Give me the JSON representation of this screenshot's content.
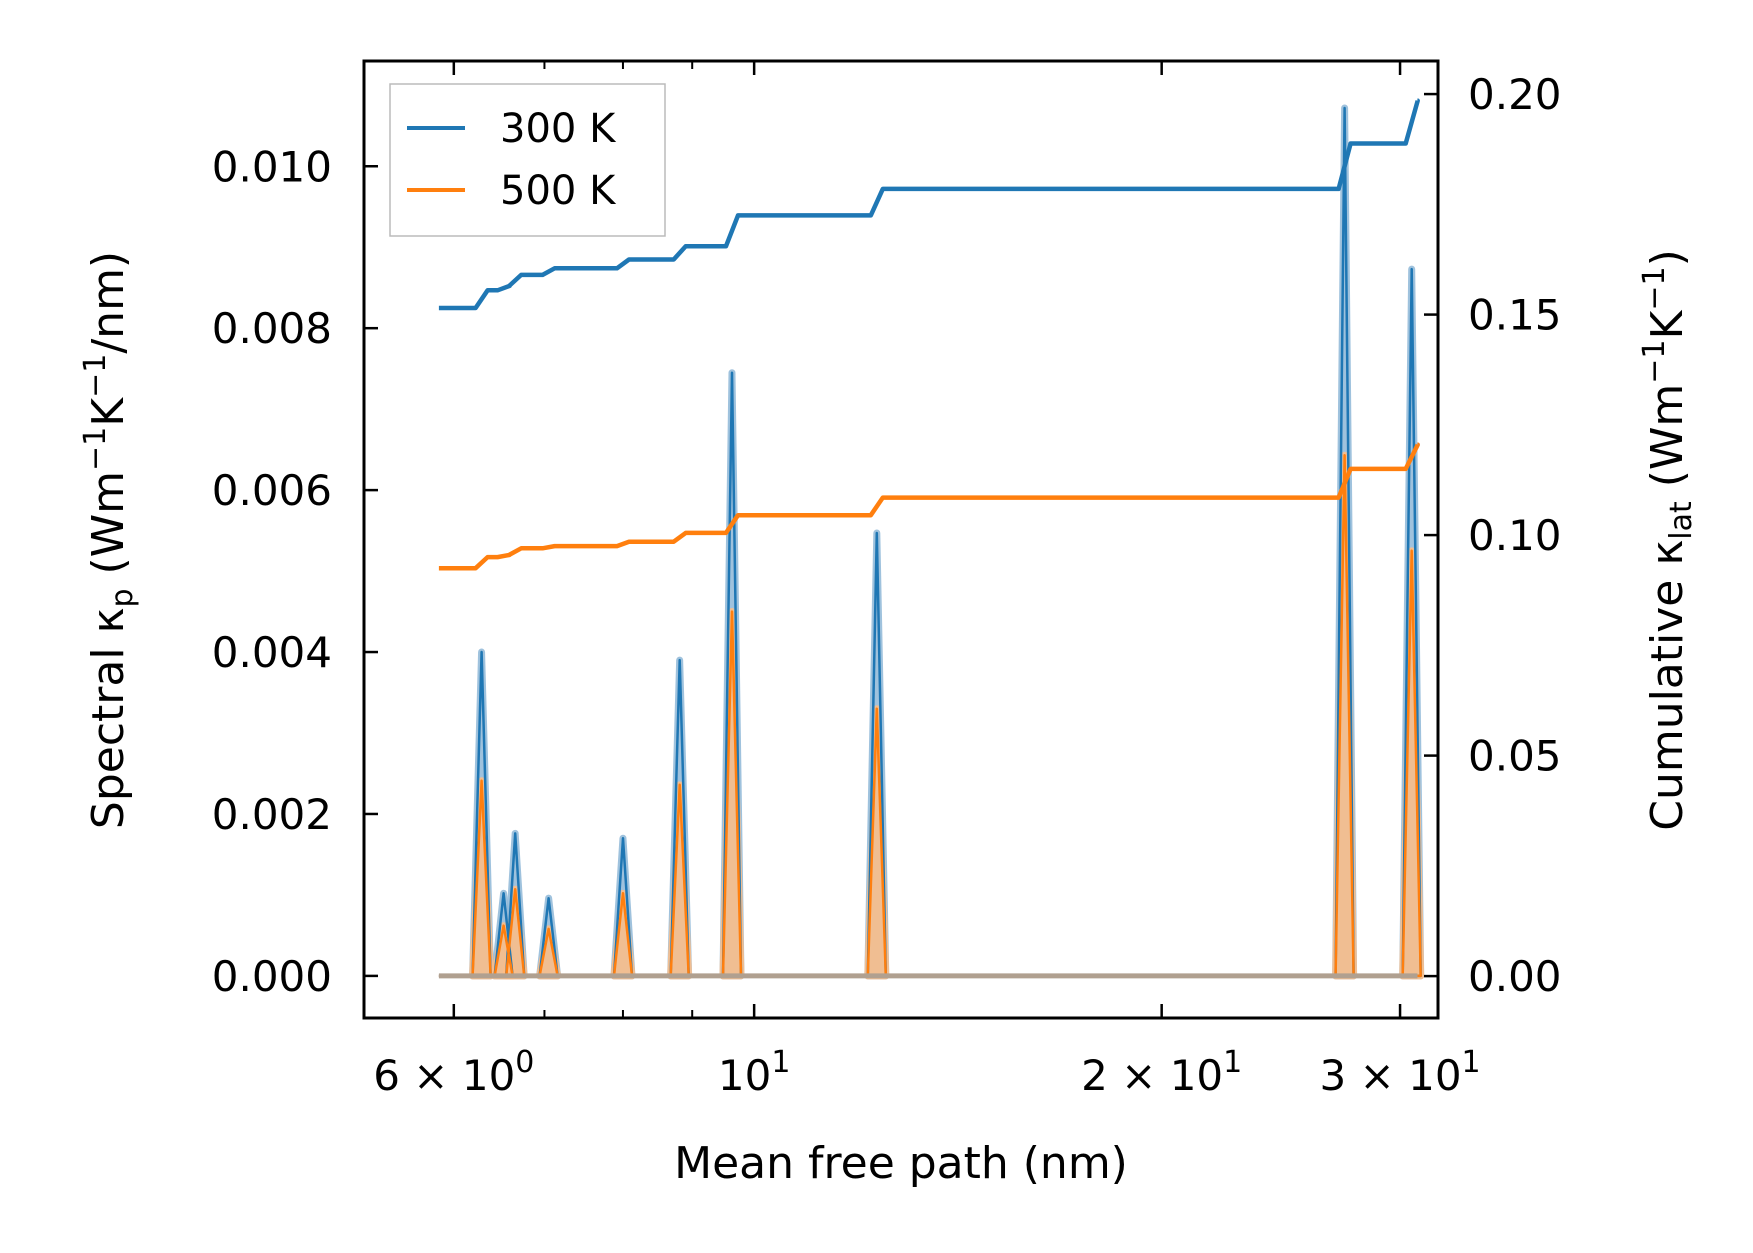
{
  "chart_data": {
    "type": "line",
    "xscale": "log",
    "xlabel": "Mean free path (nm)",
    "ylabel_left": {
      "main": "Spectral κ",
      "sub": "p",
      "unit_open": " (Wm",
      "exp1": "−1",
      "unit_mid": "K",
      "exp2": "−1",
      "unit_close": "/nm)"
    },
    "ylabel_right": {
      "main": "Cumulative κ",
      "sub": "lat",
      "unit_open": " (Wm",
      "exp1": "−1",
      "unit_mid": "K",
      "exp2": "−1",
      "unit_close": ")"
    },
    "xlim": [
      5.15,
      32.0
    ],
    "ylim_left": [
      -0.00052,
      0.0113
    ],
    "ylim_right": [
      -0.0095,
      0.2075
    ],
    "x_ticks": [
      {
        "value": 6,
        "base": "6",
        "times": "×",
        "ten": "10",
        "exp": "0"
      },
      {
        "value": 10,
        "base": "",
        "times": "",
        "ten": "10",
        "exp": "1"
      },
      {
        "value": 20,
        "base": "2",
        "times": "×",
        "ten": "10",
        "exp": "1"
      },
      {
        "value": 30,
        "base": "3",
        "times": "×",
        "ten": "10",
        "exp": "1"
      }
    ],
    "x_minor_ticks": [
      7,
      8,
      9
    ],
    "y_left_ticks": [
      "0.000",
      "0.002",
      "0.004",
      "0.006",
      "0.008",
      "0.010"
    ],
    "y_right_ticks": [
      "0.00",
      "0.05",
      "0.10",
      "0.15",
      "0.20"
    ],
    "legend": {
      "position": "top-left",
      "entries": [
        "300 K",
        "500 K"
      ]
    },
    "colors": {
      "300K": "#1f77b4",
      "500K": "#ff7f0e",
      "300K_fill": "#8fb8d8",
      "500K_fill": "#ffbe86"
    },
    "spectral_peaks": {
      "x": [
        6.29,
        6.53,
        6.66,
        7.05,
        8.0,
        8.81,
        9.63,
        12.32,
        27.3,
        30.6
      ],
      "300K": [
        0.004,
        0.00102,
        0.00176,
        0.00096,
        0.0017,
        0.0039,
        0.00745,
        0.00547,
        0.01072,
        0.00873
      ],
      "500K": [
        0.00241,
        0.00062,
        0.00107,
        0.00058,
        0.00102,
        0.00236,
        0.0045,
        0.0033,
        0.00643,
        0.00525
      ]
    },
    "cumulative": {
      "x_start": 5.85,
      "x_end": 30.9,
      "300K": [
        0.1515,
        0.1555,
        0.1565,
        0.159,
        0.1605,
        0.1625,
        0.1655,
        0.1725,
        0.1785,
        0.1888,
        0.1985
      ],
      "500K": [
        0.0925,
        0.095,
        0.0955,
        0.097,
        0.0975,
        0.0985,
        0.1005,
        0.1045,
        0.1085,
        0.115,
        0.1205
      ]
    }
  }
}
